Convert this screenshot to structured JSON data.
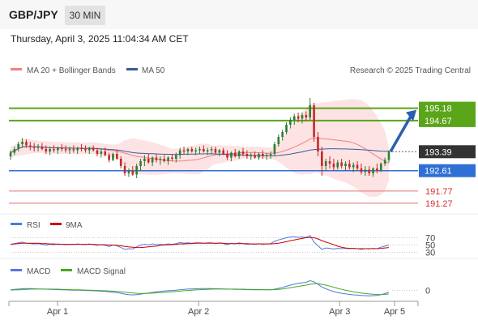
{
  "header": {
    "title": "GBP/JPY",
    "timeframe": "30 MIN"
  },
  "datetime": "Thursday, April 3, 2025 11:04:34 AM CET",
  "legend": {
    "ma20": "MA 20 + Bollinger Bands",
    "ma50": "MA 50",
    "credit": "Research © 2025 Trading Central",
    "rsi": "RSI",
    "rsi_ma": "9MA",
    "macd": "MACD",
    "macd_signal": "MACD Signal"
  },
  "colors": {
    "up": "#2e7d32",
    "down": "#c62828",
    "resistance": "#5aa51a",
    "pivot": "#2f6fd6",
    "support": "#e57373",
    "current": "#333333",
    "arrow": "#2a5fb0",
    "ma20": "#f08080",
    "ma50": "#3a5a9a",
    "bands": "#fde3e3"
  },
  "chart_data": [
    {
      "type": "candlestick",
      "panel": "price",
      "y_range": [
        190.9,
        196.3
      ],
      "x_range": [
        0,
        104
      ],
      "x_ticks": [
        {
          "label": "Apr 1",
          "x": 12
        },
        {
          "label": "Apr 2",
          "x": 48
        },
        {
          "label": "Apr 3",
          "x": 84
        },
        {
          "label": "Apr 5",
          "x": 98
        }
      ],
      "levels": [
        {
          "label": "195.18",
          "value": 195.18,
          "kind": "resistance"
        },
        {
          "label": "194.67",
          "value": 194.67,
          "kind": "resistance"
        },
        {
          "label": "193.39",
          "value": 193.39,
          "kind": "current"
        },
        {
          "label": "192.61",
          "value": 192.61,
          "kind": "pivot"
        },
        {
          "label": "191.77",
          "value": 191.77,
          "kind": "support"
        },
        {
          "label": "191.27",
          "value": 191.27,
          "kind": "support"
        }
      ],
      "ohlc": [
        [
          193.2,
          193.45,
          193.05,
          193.35
        ],
        [
          193.35,
          193.6,
          193.25,
          193.5
        ],
        [
          193.5,
          193.8,
          193.4,
          193.7
        ],
        [
          193.7,
          193.95,
          193.55,
          193.8
        ],
        [
          193.8,
          193.9,
          193.55,
          193.65
        ],
        [
          193.65,
          193.8,
          193.45,
          193.6
        ],
        [
          193.6,
          193.75,
          193.4,
          193.55
        ],
        [
          193.55,
          193.7,
          193.4,
          193.6
        ],
        [
          193.6,
          193.75,
          193.45,
          193.5
        ],
        [
          193.5,
          193.65,
          193.3,
          193.4
        ],
        [
          193.4,
          193.6,
          193.25,
          193.5
        ],
        [
          193.5,
          193.65,
          193.35,
          193.45
        ],
        [
          193.45,
          193.6,
          193.3,
          193.55
        ],
        [
          193.55,
          193.7,
          193.4,
          193.5
        ],
        [
          193.5,
          193.65,
          193.35,
          193.45
        ],
        [
          193.45,
          193.6,
          193.3,
          193.5
        ],
        [
          193.5,
          193.65,
          193.35,
          193.45
        ],
        [
          193.45,
          193.6,
          193.3,
          193.55
        ],
        [
          193.55,
          193.7,
          193.4,
          193.5
        ],
        [
          193.5,
          193.65,
          193.35,
          193.45
        ],
        [
          193.45,
          193.6,
          193.3,
          193.55
        ],
        [
          193.55,
          193.65,
          193.4,
          193.45
        ],
        [
          193.45,
          193.55,
          193.2,
          193.3
        ],
        [
          193.3,
          193.5,
          193.15,
          193.4
        ],
        [
          193.4,
          193.55,
          193.2,
          193.25
        ],
        [
          193.25,
          193.35,
          192.95,
          193.05
        ],
        [
          193.05,
          193.35,
          193.0,
          193.3
        ],
        [
          193.3,
          193.45,
          193.05,
          193.1
        ],
        [
          193.1,
          193.2,
          192.7,
          192.8
        ],
        [
          192.8,
          192.95,
          192.4,
          192.5
        ],
        [
          192.5,
          192.7,
          192.35,
          192.6
        ],
        [
          192.6,
          192.8,
          192.4,
          192.45
        ],
        [
          192.45,
          192.9,
          192.3,
          192.8
        ],
        [
          192.8,
          193.1,
          192.6,
          193.0
        ],
        [
          193.0,
          193.25,
          192.8,
          193.1
        ],
        [
          193.1,
          193.3,
          192.9,
          192.95
        ],
        [
          192.95,
          193.2,
          192.8,
          193.15
        ],
        [
          193.15,
          193.3,
          192.95,
          193.05
        ],
        [
          193.05,
          193.2,
          192.85,
          193.1
        ],
        [
          193.1,
          193.25,
          192.95,
          193.0
        ],
        [
          193.0,
          193.2,
          192.85,
          193.15
        ],
        [
          193.15,
          193.3,
          193.0,
          193.1
        ],
        [
          193.1,
          193.35,
          192.95,
          193.25
        ],
        [
          193.25,
          193.55,
          193.1,
          193.45
        ],
        [
          193.45,
          193.6,
          193.3,
          193.4
        ],
        [
          193.4,
          193.55,
          193.25,
          193.5
        ],
        [
          193.5,
          193.6,
          193.35,
          193.4
        ],
        [
          193.4,
          193.55,
          193.25,
          193.45
        ],
        [
          193.45,
          193.6,
          193.3,
          193.5
        ],
        [
          193.5,
          193.65,
          193.35,
          193.4
        ],
        [
          193.4,
          193.55,
          193.25,
          193.45
        ],
        [
          193.45,
          193.6,
          193.3,
          193.5
        ],
        [
          193.5,
          193.6,
          193.3,
          193.35
        ],
        [
          193.35,
          193.5,
          193.2,
          193.45
        ],
        [
          193.45,
          193.55,
          193.25,
          193.3
        ],
        [
          193.3,
          193.45,
          193.05,
          193.15
        ],
        [
          193.15,
          193.4,
          193.0,
          193.35
        ],
        [
          193.35,
          193.5,
          193.15,
          193.2
        ],
        [
          193.2,
          193.45,
          193.1,
          193.4
        ],
        [
          193.4,
          193.55,
          193.2,
          193.3
        ],
        [
          193.3,
          193.45,
          193.1,
          193.2
        ],
        [
          193.2,
          193.35,
          193.05,
          193.25
        ],
        [
          193.25,
          193.4,
          193.1,
          193.15
        ],
        [
          193.15,
          193.35,
          193.05,
          193.3
        ],
        [
          193.3,
          193.45,
          193.1,
          193.2
        ],
        [
          193.2,
          193.35,
          193.05,
          193.25
        ],
        [
          193.25,
          193.4,
          193.1,
          193.3
        ],
        [
          193.3,
          193.8,
          193.2,
          193.7
        ],
        [
          193.7,
          194.1,
          193.6,
          194.0
        ],
        [
          194.0,
          194.3,
          193.85,
          194.2
        ],
        [
          194.2,
          194.6,
          194.1,
          194.5
        ],
        [
          194.5,
          194.8,
          194.35,
          194.7
        ],
        [
          194.7,
          194.95,
          194.5,
          194.85
        ],
        [
          194.85,
          195.0,
          194.6,
          194.75
        ],
        [
          194.75,
          195.0,
          194.55,
          194.9
        ],
        [
          194.9,
          195.05,
          194.65,
          194.8
        ],
        [
          194.8,
          195.6,
          194.7,
          195.3
        ],
        [
          195.3,
          195.4,
          193.8,
          194.0
        ],
        [
          194.0,
          194.2,
          193.2,
          193.4
        ],
        [
          193.4,
          193.6,
          192.4,
          192.8
        ],
        [
          192.8,
          193.1,
          192.6,
          193.0
        ],
        [
          193.0,
          193.2,
          192.7,
          192.9
        ],
        [
          192.9,
          193.1,
          192.6,
          192.75
        ],
        [
          192.75,
          193.05,
          192.65,
          192.95
        ],
        [
          192.95,
          193.1,
          192.7,
          192.8
        ],
        [
          192.8,
          193.0,
          192.6,
          192.9
        ],
        [
          192.9,
          193.05,
          192.65,
          192.75
        ],
        [
          192.75,
          192.95,
          192.55,
          192.85
        ],
        [
          192.85,
          193.0,
          192.6,
          192.7
        ],
        [
          192.7,
          192.9,
          192.45,
          192.55
        ],
        [
          192.55,
          192.8,
          192.4,
          192.65
        ],
        [
          192.65,
          192.8,
          192.4,
          192.5
        ],
        [
          192.5,
          192.75,
          192.35,
          192.7
        ],
        [
          192.7,
          192.9,
          192.5,
          192.6
        ],
        [
          192.6,
          192.95,
          192.55,
          192.9
        ],
        [
          192.9,
          193.15,
          192.8,
          193.05
        ],
        [
          193.05,
          193.45,
          192.95,
          193.39
        ]
      ]
    },
    {
      "type": "line",
      "panel": "rsi",
      "y_range": [
        20,
        80
      ],
      "y_ticks": [
        "70",
        "50",
        "30"
      ],
      "series": [
        {
          "name": "RSI",
          "values": [
            52,
            54,
            56,
            58,
            55,
            54,
            53,
            54,
            52,
            50,
            52,
            51,
            53,
            52,
            51,
            52,
            51,
            53,
            52,
            51,
            53,
            51,
            49,
            51,
            49,
            46,
            50,
            48,
            43,
            38,
            40,
            39,
            45,
            50,
            52,
            50,
            53,
            51,
            52,
            51,
            53,
            52,
            54,
            57,
            55,
            56,
            55,
            56,
            56,
            55,
            56,
            56,
            54,
            56,
            54,
            51,
            55,
            53,
            56,
            54,
            52,
            53,
            52,
            54,
            52,
            53,
            54,
            60,
            64,
            67,
            70,
            72,
            73,
            71,
            72,
            71,
            76,
            58,
            48,
            38,
            42,
            41,
            39,
            41,
            40,
            41,
            40,
            41,
            40,
            38,
            40,
            39,
            41,
            40,
            44,
            47,
            50
          ]
        },
        {
          "name": "9MA",
          "values": [
            52,
            53,
            54,
            55,
            55,
            55,
            55,
            55,
            54,
            54,
            53,
            53,
            52,
            52,
            52,
            52,
            52,
            52,
            52,
            52,
            52,
            52,
            51,
            51,
            51,
            50,
            50,
            49,
            48,
            46,
            45,
            44,
            43,
            43,
            44,
            45,
            46,
            47,
            49,
            50,
            51,
            51,
            52,
            53,
            53,
            54,
            54,
            55,
            55,
            55,
            55,
            55,
            55,
            55,
            55,
            54,
            54,
            54,
            54,
            54,
            54,
            53,
            53,
            53,
            53,
            53,
            53,
            54,
            55,
            57,
            59,
            62,
            64,
            66,
            68,
            70,
            71,
            70,
            67,
            62,
            58,
            55,
            51,
            47,
            44,
            42,
            41,
            41,
            40,
            40,
            40,
            40,
            40,
            40,
            41,
            42,
            43
          ]
        }
      ]
    },
    {
      "type": "line",
      "panel": "macd",
      "y_range": [
        -0.6,
        0.9
      ],
      "y_ticks": [
        "0"
      ],
      "series": [
        {
          "name": "MACD",
          "values": [
            0.05,
            0.08,
            0.1,
            0.12,
            0.13,
            0.13,
            0.12,
            0.11,
            0.1,
            0.09,
            0.08,
            0.07,
            0.06,
            0.05,
            0.04,
            0.03,
            0.02,
            0.02,
            0.01,
            0.0,
            -0.01,
            -0.02,
            -0.04,
            -0.05,
            -0.07,
            -0.1,
            -0.12,
            -0.15,
            -0.2,
            -0.26,
            -0.3,
            -0.32,
            -0.3,
            -0.26,
            -0.22,
            -0.18,
            -0.14,
            -0.1,
            -0.07,
            -0.04,
            -0.02,
            0.0,
            0.02,
            0.05,
            0.08,
            0.1,
            0.11,
            0.12,
            0.13,
            0.13,
            0.13,
            0.13,
            0.12,
            0.12,
            0.11,
            0.09,
            0.09,
            0.08,
            0.08,
            0.07,
            0.06,
            0.06,
            0.05,
            0.05,
            0.05,
            0.05,
            0.05,
            0.09,
            0.15,
            0.22,
            0.3,
            0.38,
            0.45,
            0.5,
            0.55,
            0.58,
            0.7,
            0.62,
            0.45,
            0.25,
            0.12,
            0.02,
            -0.08,
            -0.15,
            -0.2,
            -0.24,
            -0.28,
            -0.31,
            -0.33,
            -0.36,
            -0.37,
            -0.38,
            -0.37,
            -0.36,
            -0.3,
            -0.22,
            -0.12
          ]
        },
        {
          "name": "MACD Signal",
          "values": [
            0.03,
            0.04,
            0.05,
            0.06,
            0.08,
            0.09,
            0.1,
            0.1,
            0.1,
            0.1,
            0.1,
            0.09,
            0.09,
            0.08,
            0.07,
            0.06,
            0.05,
            0.05,
            0.04,
            0.03,
            0.02,
            0.01,
            0.0,
            -0.01,
            -0.02,
            -0.04,
            -0.05,
            -0.07,
            -0.09,
            -0.12,
            -0.15,
            -0.18,
            -0.2,
            -0.21,
            -0.21,
            -0.2,
            -0.19,
            -0.17,
            -0.15,
            -0.13,
            -0.11,
            -0.09,
            -0.07,
            -0.05,
            -0.02,
            0.0,
            0.02,
            0.04,
            0.06,
            0.07,
            0.08,
            0.09,
            0.1,
            0.1,
            0.1,
            0.1,
            0.1,
            0.1,
            0.09,
            0.09,
            0.08,
            0.08,
            0.07,
            0.07,
            0.06,
            0.06,
            0.06,
            0.06,
            0.08,
            0.11,
            0.15,
            0.19,
            0.24,
            0.29,
            0.34,
            0.38,
            0.44,
            0.48,
            0.48,
            0.44,
            0.38,
            0.31,
            0.23,
            0.15,
            0.08,
            0.02,
            -0.04,
            -0.09,
            -0.14,
            -0.18,
            -0.22,
            -0.25,
            -0.27,
            -0.29,
            -0.29,
            -0.28,
            -0.25
          ]
        }
      ]
    }
  ]
}
